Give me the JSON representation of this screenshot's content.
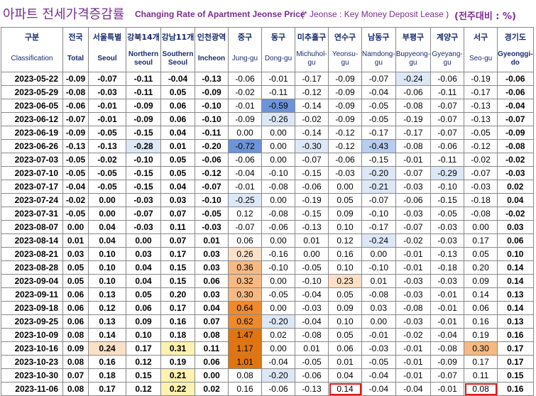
{
  "title": {
    "korean": "아파트 전세가격증감률",
    "english": "Changing Rate of Apartment Jeonse Price",
    "note": "(* Jeonse : Key Money Deposit Lease )",
    "unit": "(전주대비 : %)"
  },
  "columns": [
    {
      "ko": "구분",
      "en": "Classification"
    },
    {
      "ko": "전국",
      "en": "Total"
    },
    {
      "ko": "서울특별",
      "en": "Seoul"
    },
    {
      "ko": "강북14개",
      "en": "Northern seoul"
    },
    {
      "ko": "강남11개",
      "en": "Southern Seoul"
    },
    {
      "ko": "인천광역",
      "en": "Incheon"
    },
    {
      "ko": "중구",
      "en": "Jung-gu"
    },
    {
      "ko": "동구",
      "en": "Dong-gu"
    },
    {
      "ko": "미추홀구",
      "en": "Michuhol-gu"
    },
    {
      "ko": "연수구",
      "en": "Yeonsu-gu"
    },
    {
      "ko": "남동구",
      "en": "Namdong-gu"
    },
    {
      "ko": "부평구",
      "en": "Bupyeong-gu"
    },
    {
      "ko": "계양구",
      "en": "Gyeyang-gu"
    },
    {
      "ko": "서구",
      "en": "Seo-gu"
    },
    {
      "ko": "경기도",
      "en": "Gyeonggi-do"
    }
  ],
  "rows": [
    {
      "date": "2023-05-22",
      "v": [
        "-0.09",
        "-0.07",
        "-0.11",
        "-0.04",
        "-0.13",
        "-0.06",
        "-0.01",
        "-0.17",
        "-0.09",
        "-0.07",
        "-0.24",
        "-0.06",
        "-0.19",
        "-0.06"
      ]
    },
    {
      "date": "2023-05-29",
      "v": [
        "-0.08",
        "-0.03",
        "-0.11",
        "0.05",
        "-0.09",
        "-0.02",
        "-0.11",
        "-0.12",
        "-0.09",
        "-0.04",
        "-0.06",
        "-0.11",
        "-0.17",
        "-0.06"
      ]
    },
    {
      "date": "2023-06-05",
      "v": [
        "-0.06",
        "-0.01",
        "-0.09",
        "0.06",
        "-0.10",
        "-0.01",
        "-0.59",
        "-0.14",
        "-0.09",
        "-0.05",
        "-0.08",
        "-0.07",
        "-0.13",
        "-0.04"
      ]
    },
    {
      "date": "2023-06-12",
      "v": [
        "-0.07",
        "-0.01",
        "-0.09",
        "0.06",
        "-0.10",
        "-0.09",
        "-0.26",
        "-0.02",
        "-0.09",
        "-0.05",
        "-0.19",
        "-0.07",
        "-0.13",
        "-0.07"
      ]
    },
    {
      "date": "2023-06-19",
      "v": [
        "-0.09",
        "-0.05",
        "-0.15",
        "0.04",
        "-0.11",
        "0.00",
        "0.00",
        "-0.14",
        "-0.12",
        "-0.17",
        "-0.17",
        "-0.07",
        "-0.05",
        "-0.09"
      ]
    },
    {
      "date": "2023-06-26",
      "v": [
        "-0.13",
        "-0.13",
        "-0.28",
        "0.01",
        "-0.20",
        "-0.72",
        "0.00",
        "-0.30",
        "-0.12",
        "-0.43",
        "-0.08",
        "-0.06",
        "-0.12",
        "-0.08"
      ]
    },
    {
      "date": "2023-07-03",
      "v": [
        "-0.05",
        "-0.02",
        "-0.10",
        "0.05",
        "-0.06",
        "-0.06",
        "0.00",
        "-0.07",
        "-0.06",
        "-0.15",
        "-0.01",
        "-0.11",
        "-0.02",
        "-0.02"
      ]
    },
    {
      "date": "2023-07-10",
      "v": [
        "-0.05",
        "-0.05",
        "-0.15",
        "0.05",
        "-0.12",
        "-0.04",
        "-0.10",
        "-0.15",
        "-0.03",
        "-0.20",
        "-0.07",
        "-0.29",
        "-0.07",
        "-0.03"
      ]
    },
    {
      "date": "2023-07-17",
      "v": [
        "-0.04",
        "-0.05",
        "-0.15",
        "0.04",
        "-0.07",
        "-0.01",
        "-0.08",
        "-0.06",
        "0.00",
        "-0.21",
        "-0.03",
        "-0.10",
        "-0.03",
        "0.02"
      ]
    },
    {
      "date": "2023-07-24",
      "v": [
        "-0.02",
        "0.00",
        "-0.03",
        "0.03",
        "-0.10",
        "-0.25",
        "0.00",
        "-0.19",
        "0.05",
        "-0.07",
        "-0.06",
        "-0.15",
        "-0.18",
        "0.04"
      ]
    },
    {
      "date": "2023-07-31",
      "v": [
        "-0.05",
        "0.00",
        "-0.07",
        "0.07",
        "-0.05",
        "0.12",
        "-0.08",
        "-0.15",
        "0.09",
        "-0.10",
        "-0.03",
        "-0.05",
        "-0.08",
        "-0.02"
      ]
    },
    {
      "date": "2023-08-07",
      "v": [
        "0.00",
        "0.04",
        "-0.03",
        "0.11",
        "-0.03",
        "-0.07",
        "-0.06",
        "-0.13",
        "0.10",
        "-0.17",
        "-0.07",
        "-0.03",
        "0.00",
        "0.03"
      ]
    },
    {
      "date": "2023-08-14",
      "v": [
        "0.01",
        "0.04",
        "0.00",
        "0.07",
        "0.01",
        "0.06",
        "0.00",
        "0.01",
        "0.12",
        "-0.24",
        "-0.02",
        "-0.03",
        "0.17",
        "0.06"
      ]
    },
    {
      "date": "2023-08-21",
      "v": [
        "0.03",
        "0.10",
        "0.03",
        "0.17",
        "0.03",
        "0.26",
        "-0.16",
        "0.00",
        "0.16",
        "0.00",
        "-0.01",
        "-0.13",
        "0.05",
        "0.10"
      ]
    },
    {
      "date": "2023-08-28",
      "v": [
        "0.05",
        "0.10",
        "0.04",
        "0.15",
        "0.03",
        "0.36",
        "-0.10",
        "-0.05",
        "0.10",
        "-0.10",
        "-0.01",
        "-0.18",
        "0.20",
        "0.14"
      ]
    },
    {
      "date": "2023-09-04",
      "v": [
        "0.05",
        "0.10",
        "0.04",
        "0.15",
        "0.06",
        "0.32",
        "0.00",
        "-0.10",
        "0.23",
        "0.01",
        "-0.03",
        "-0.03",
        "0.09",
        "0.14"
      ]
    },
    {
      "date": "2023-09-11",
      "v": [
        "0.06",
        "0.13",
        "0.05",
        "0.20",
        "0.03",
        "0.30",
        "-0.05",
        "-0.04",
        "0.05",
        "-0.08",
        "-0.03",
        "-0.01",
        "0.14",
        "0.13"
      ]
    },
    {
      "date": "2023-09-18",
      "v": [
        "0.06",
        "0.12",
        "0.06",
        "0.17",
        "0.04",
        "0.64",
        "0.00",
        "-0.03",
        "0.09",
        "0.03",
        "-0.08",
        "-0.01",
        "0.06",
        "0.14"
      ]
    },
    {
      "date": "2023-09-25",
      "v": [
        "0.06",
        "0.13",
        "0.09",
        "0.16",
        "0.07",
        "0.62",
        "-0.20",
        "-0.04",
        "0.10",
        "0.00",
        "-0.03",
        "-0.01",
        "0.16",
        "0.13"
      ]
    },
    {
      "date": "2023-10-09",
      "v": [
        "0.08",
        "0.14",
        "0.10",
        "0.18",
        "0.08",
        "1.47",
        "0.02",
        "-0.08",
        "0.05",
        "-0.01",
        "-0.02",
        "-0.04",
        "0.19",
        "0.16"
      ]
    },
    {
      "date": "2023-10-16",
      "v": [
        "0.09",
        "0.24",
        "0.17",
        "0.31",
        "0.11",
        "1.17",
        "0.00",
        "0.01",
        "0.06",
        "-0.03",
        "-0.01",
        "-0.08",
        "0.30",
        "0.17"
      ]
    },
    {
      "date": "2023-10-23",
      "v": [
        "0.08",
        "0.16",
        "0.12",
        "0.19",
        "0.06",
        "1.01",
        "-0.04",
        "-0.05",
        "0.01",
        "-0.05",
        "-0.01",
        "-0.09",
        "0.17",
        "0.17"
      ]
    },
    {
      "date": "2023-10-30",
      "v": [
        "0.07",
        "0.18",
        "0.15",
        "0.21",
        "0.00",
        "0.08",
        "-0.20",
        "-0.06",
        "0.04",
        "-0.04",
        "-0.01",
        "-0.07",
        "0.11",
        "0.15"
      ]
    },
    {
      "date": "2023-11-06",
      "v": [
        "0.08",
        "0.17",
        "0.12",
        "0.22",
        "0.02",
        "0.16",
        "-0.06",
        "-0.13",
        "0.14",
        "-0.04",
        "-0.04",
        "-0.01",
        "0.08",
        "0.16"
      ]
    }
  ],
  "highlight_cells": [
    {
      "date": "2023-11-06",
      "column": "Yeonsu-gu",
      "style": "red-box"
    },
    {
      "date": "2023-11-06",
      "column": "Seo-gu",
      "style": "red-box"
    }
  ],
  "colors": {
    "title": "#7a2c91",
    "header_text": "#1a2a6c",
    "highlight_border": "#e0181a",
    "negative_light": "#dde8f7",
    "negative_mid": "#b7cdee",
    "negative_strong": "#6d93d8",
    "positive_light": "#fbe0c8",
    "positive_mid": "#f6b983",
    "positive_strong": "#ee8a2c",
    "positive_max": "#e0750f",
    "yellow_fill": "#fff2b0"
  }
}
